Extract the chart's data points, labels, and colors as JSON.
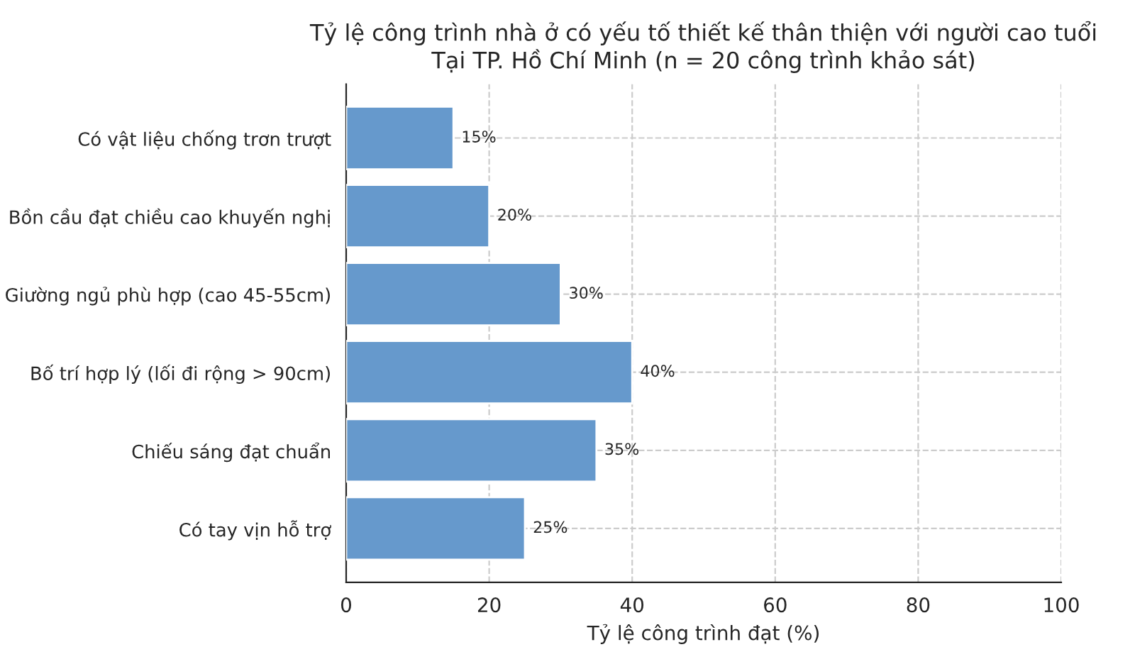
{
  "chart_data": {
    "type": "bar",
    "orientation": "horizontal",
    "title": "Tỷ lệ công trình nhà ở có yếu tố thiết kế thân thiện với người cao tuổi\nTại TP. Hồ Chí Minh (n = 20 công trình khảo sát)",
    "xlabel": "Tỷ lệ công trình đạt (%)",
    "categories": [
      "Có vật liệu chống trơn trượt",
      "Bồn cầu đạt chiều cao khuyến nghị",
      "Giường ngủ phù hợp (cao 45-55cm)",
      "Bố trí hợp lý (lối đi rộng > 90cm)",
      "Chiếu sáng đạt chuẩn",
      "Có tay vịn hỗ trợ"
    ],
    "values": [
      15,
      20,
      30,
      40,
      35,
      25
    ],
    "value_labels": [
      "15%",
      "20%",
      "30%",
      "40%",
      "35%",
      "25%"
    ],
    "color": "#6699cc",
    "xlim": [
      0,
      100
    ],
    "xticks": [
      0,
      20,
      40,
      60,
      80,
      100
    ],
    "grid": true
  }
}
